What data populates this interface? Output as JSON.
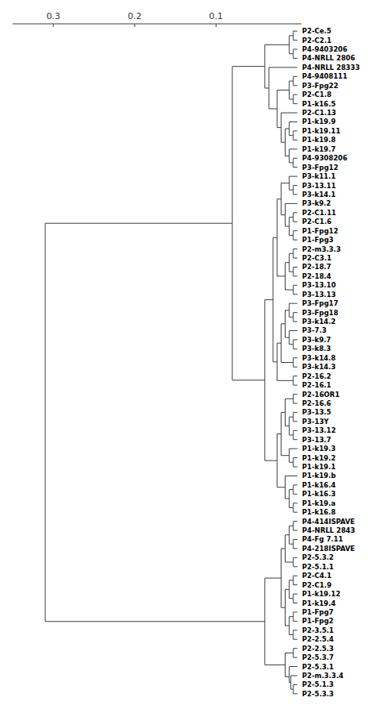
{
  "chart_data": {
    "type": "dendrogram",
    "color": "#3d3d3d",
    "xlim": [
      0.35,
      -0.005
    ],
    "xticks": [
      0.3,
      0.2,
      0.1
    ],
    "ylim": [
      -0.8,
      73.8
    ],
    "tick_labels": "x",
    "grid": false,
    "labels": [
      "P2-5.3.3",
      "P2-5.1.3",
      "P2-m.3.3.4",
      "P2-5.3.1",
      "P2-5.3.7",
      "P2-2.5.3",
      "P2-2.5.4",
      "P2-3.5.1",
      "P1-Fpg2",
      "P1-Fpg7",
      "P1-k19.4",
      "P1-k19.12",
      "P2-C1.9",
      "P2-C4.1",
      "P2-5.1.1",
      "P2-5.3.2",
      "P4-218ISPAVE",
      "P4-Fg 7.11",
      "P4-NRLL 2843",
      "P4-414ISPAVE",
      "P1-k16.8",
      "P1-k19.a",
      "P1-k16.3",
      "P1-k16.4",
      "P1-k19.b",
      "P1-k19.1",
      "P1-k19.2",
      "P1-k19.3",
      "P3-13.7",
      "P3-13.12",
      "P3-13Y",
      "P3-13.5",
      "P2-16.6",
      "P2-16OR1",
      "P2-16.1",
      "P2-16.2",
      "P3-k14.3",
      "P3-k14.8",
      "P3-k8.3",
      "P3-k9.7",
      "P3-7.3",
      "P3-k14.2",
      "P3-Fpg18",
      "P3-Fpg17",
      "P3-13.13",
      "P3-13.10",
      "P2-18.4",
      "P2-18.7",
      "P2-C3.1",
      "P2-m3.3.3",
      "P1-Fpg3",
      "P1-Fpg12",
      "P2-C1.6",
      "P2-C1.11",
      "P3-k9.2",
      "P3-k14.1",
      "P3-13.11",
      "P3-k11.1",
      "P3-Fpg12",
      "P4-9308206",
      "P1-k19.7",
      "P1-k19.8",
      "P1-k19.11",
      "P1-k19.9",
      "P2-C1.13",
      "P1-k16.5",
      "P2-C1.8",
      "P3-Fpg22",
      "P4-9408111",
      "P4-NRLL 28333",
      "P4-NRLL 2806",
      "P4-9403206",
      "P2-C2.1",
      "P2-Ce.5"
    ],
    "merges": [
      {
        "left_y": 0,
        "right_y": 1,
        "dist": 0.005,
        "parent_y": 0.5
      },
      {
        "left_y": 0.5,
        "right_y": 2,
        "dist": 0.008,
        "parent_y": 1.25
      },
      {
        "left_y": 1.25,
        "right_y": 3,
        "dist": 0.01,
        "parent_y": 1.875
      },
      {
        "left_y": 4,
        "right_y": 5,
        "dist": 0.005,
        "parent_y": 4.5
      },
      {
        "left_y": 1.875,
        "right_y": 4.5,
        "dist": 0.015,
        "parent_y": 3.1875
      },
      {
        "left_y": 6,
        "right_y": 7,
        "dist": 0.005,
        "parent_y": 6.5
      },
      {
        "left_y": 8,
        "right_y": 9,
        "dist": 0.005,
        "parent_y": 8.5
      },
      {
        "left_y": 6.5,
        "right_y": 8.5,
        "dist": 0.01,
        "parent_y": 7.5
      },
      {
        "left_y": 10,
        "right_y": 11,
        "dist": 0.005,
        "parent_y": 10.5
      },
      {
        "left_y": 12,
        "right_y": 13,
        "dist": 0.005,
        "parent_y": 12.5
      },
      {
        "left_y": 10.5,
        "right_y": 12.5,
        "dist": 0.01,
        "parent_y": 11.5
      },
      {
        "left_y": 7.5,
        "right_y": 11.5,
        "dist": 0.015,
        "parent_y": 9.5
      },
      {
        "left_y": 14,
        "right_y": 15,
        "dist": 0.005,
        "parent_y": 14.5
      },
      {
        "left_y": 16,
        "right_y": 17,
        "dist": 0.005,
        "parent_y": 16.5
      },
      {
        "left_y": 18,
        "right_y": 19,
        "dist": 0.005,
        "parent_y": 18.5
      },
      {
        "left_y": 16.5,
        "right_y": 18.5,
        "dist": 0.01,
        "parent_y": 17.5
      },
      {
        "left_y": 14.5,
        "right_y": 17.5,
        "dist": 0.015,
        "parent_y": 16.0
      },
      {
        "left_y": 9.5,
        "right_y": 16.0,
        "dist": 0.02,
        "parent_y": 12.75
      },
      {
        "left_y": 3.1875,
        "right_y": 12.75,
        "dist": 0.04,
        "parent_y": 7.96875
      },
      {
        "left_y": 20,
        "right_y": 21,
        "dist": 0.005,
        "parent_y": 20.5
      },
      {
        "left_y": 22,
        "right_y": 23,
        "dist": 0.005,
        "parent_y": 22.5
      },
      {
        "left_y": 20.5,
        "right_y": 22.5,
        "dist": 0.01,
        "parent_y": 21.5
      },
      {
        "left_y": 24,
        "right_y": 21.5,
        "dist": 0.015,
        "parent_y": 22.75
      },
      {
        "left_y": 25,
        "right_y": 26,
        "dist": 0.005,
        "parent_y": 25.5
      },
      {
        "left_y": 27,
        "right_y": 25.5,
        "dist": 0.01,
        "parent_y": 26.25
      },
      {
        "left_y": 28,
        "right_y": 29,
        "dist": 0.005,
        "parent_y": 28.5
      },
      {
        "left_y": 30,
        "right_y": 31,
        "dist": 0.005,
        "parent_y": 30.5
      },
      {
        "left_y": 28.5,
        "right_y": 30.5,
        "dist": 0.01,
        "parent_y": 29.5
      },
      {
        "left_y": 32,
        "right_y": 33,
        "dist": 0.005,
        "parent_y": 32.5
      },
      {
        "left_y": 29.5,
        "right_y": 32.5,
        "dist": 0.015,
        "parent_y": 31.0
      },
      {
        "left_y": 26.25,
        "right_y": 31.0,
        "dist": 0.02,
        "parent_y": 28.625
      },
      {
        "left_y": 22.75,
        "right_y": 28.625,
        "dist": 0.025,
        "parent_y": 25.6875
      },
      {
        "left_y": 34,
        "right_y": 35,
        "dist": 0.005,
        "parent_y": 34.5
      },
      {
        "left_y": 36,
        "right_y": 37,
        "dist": 0.005,
        "parent_y": 36.5
      },
      {
        "left_y": 38,
        "right_y": 39,
        "dist": 0.005,
        "parent_y": 38.5
      },
      {
        "left_y": 40,
        "right_y": 38.5,
        "dist": 0.01,
        "parent_y": 39.25
      },
      {
        "left_y": 41,
        "right_y": 42,
        "dist": 0.005,
        "parent_y": 41.5
      },
      {
        "left_y": 43,
        "right_y": 41.5,
        "dist": 0.01,
        "parent_y": 42.25
      },
      {
        "left_y": 39.25,
        "right_y": 42.25,
        "dist": 0.015,
        "parent_y": 40.75
      },
      {
        "left_y": 36.5,
        "right_y": 40.75,
        "dist": 0.02,
        "parent_y": 38.625
      },
      {
        "left_y": 34.5,
        "right_y": 38.625,
        "dist": 0.025,
        "parent_y": 36.5625
      },
      {
        "left_y": 44,
        "right_y": 45,
        "dist": 0.005,
        "parent_y": 44.5
      },
      {
        "left_y": 46,
        "right_y": 47,
        "dist": 0.005,
        "parent_y": 46.5
      },
      {
        "left_y": 48,
        "right_y": 49,
        "dist": 0.005,
        "parent_y": 48.5
      },
      {
        "left_y": 46.5,
        "right_y": 48.5,
        "dist": 0.01,
        "parent_y": 47.5
      },
      {
        "left_y": 44.5,
        "right_y": 47.5,
        "dist": 0.015,
        "parent_y": 46.0
      },
      {
        "left_y": 50,
        "right_y": 51,
        "dist": 0.005,
        "parent_y": 50.5
      },
      {
        "left_y": 52,
        "right_y": 53,
        "dist": 0.005,
        "parent_y": 52.5
      },
      {
        "left_y": 50.5,
        "right_y": 52.5,
        "dist": 0.01,
        "parent_y": 51.5
      },
      {
        "left_y": 54,
        "right_y": 51.5,
        "dist": 0.015,
        "parent_y": 52.75
      },
      {
        "left_y": 55,
        "right_y": 56,
        "dist": 0.005,
        "parent_y": 55.5
      },
      {
        "left_y": 57,
        "right_y": 55.5,
        "dist": 0.01,
        "parent_y": 56.25
      },
      {
        "left_y": 58,
        "right_y": 59,
        "dist": 0.005,
        "parent_y": 58.5
      },
      {
        "left_y": 52.75,
        "right_y": 56.25,
        "dist": 0.02,
        "parent_y": 54.5
      },
      {
        "left_y": 46.0,
        "right_y": 54.5,
        "dist": 0.025,
        "parent_y": 50.25
      },
      {
        "left_y": 36.5625,
        "right_y": 50.25,
        "dist": 0.03,
        "parent_y": 43.40625
      },
      {
        "left_y": 25.6875,
        "right_y": 43.40625,
        "dist": 0.04,
        "parent_y": 34.546875
      },
      {
        "left_y": 58.5,
        "right_y": 60,
        "dist": 0.01,
        "parent_y": 59.25
      },
      {
        "left_y": 61,
        "right_y": 62,
        "dist": 0.005,
        "parent_y": 61.5
      },
      {
        "left_y": 63,
        "right_y": 61.5,
        "dist": 0.01,
        "parent_y": 62.25
      },
      {
        "left_y": 59.25,
        "right_y": 62.25,
        "dist": 0.015,
        "parent_y": 60.75
      },
      {
        "left_y": 64,
        "right_y": 60.75,
        "dist": 0.02,
        "parent_y": 62.375
      },
      {
        "left_y": 65,
        "right_y": 66,
        "dist": 0.005,
        "parent_y": 65.5
      },
      {
        "left_y": 67,
        "right_y": 68,
        "dist": 0.005,
        "parent_y": 67.5
      },
      {
        "left_y": 65.5,
        "right_y": 67.5,
        "dist": 0.01,
        "parent_y": 66.5
      },
      {
        "left_y": 62.375,
        "right_y": 66.5,
        "dist": 0.025,
        "parent_y": 64.4375
      },
      {
        "left_y": 69,
        "right_y": 64.4375,
        "dist": 0.035,
        "parent_y": 66.71875
      },
      {
        "left_y": 70,
        "right_y": 71,
        "dist": 0.005,
        "parent_y": 70.5
      },
      {
        "left_y": 72,
        "right_y": 73,
        "dist": 0.005,
        "parent_y": 72.5
      },
      {
        "left_y": 70.5,
        "right_y": 72.5,
        "dist": 0.01,
        "parent_y": 71.5
      },
      {
        "left_y": 66.71875,
        "right_y": 71.5,
        "dist": 0.04,
        "parent_y": 69.109375
      },
      {
        "left_y": 34.546875,
        "right_y": 69.109375,
        "dist": 0.08,
        "parent_y": 51.828125
      },
      {
        "left_y": 7.96875,
        "right_y": 51.828125,
        "dist": 0.31,
        "parent_y": 29.8984375
      }
    ]
  }
}
